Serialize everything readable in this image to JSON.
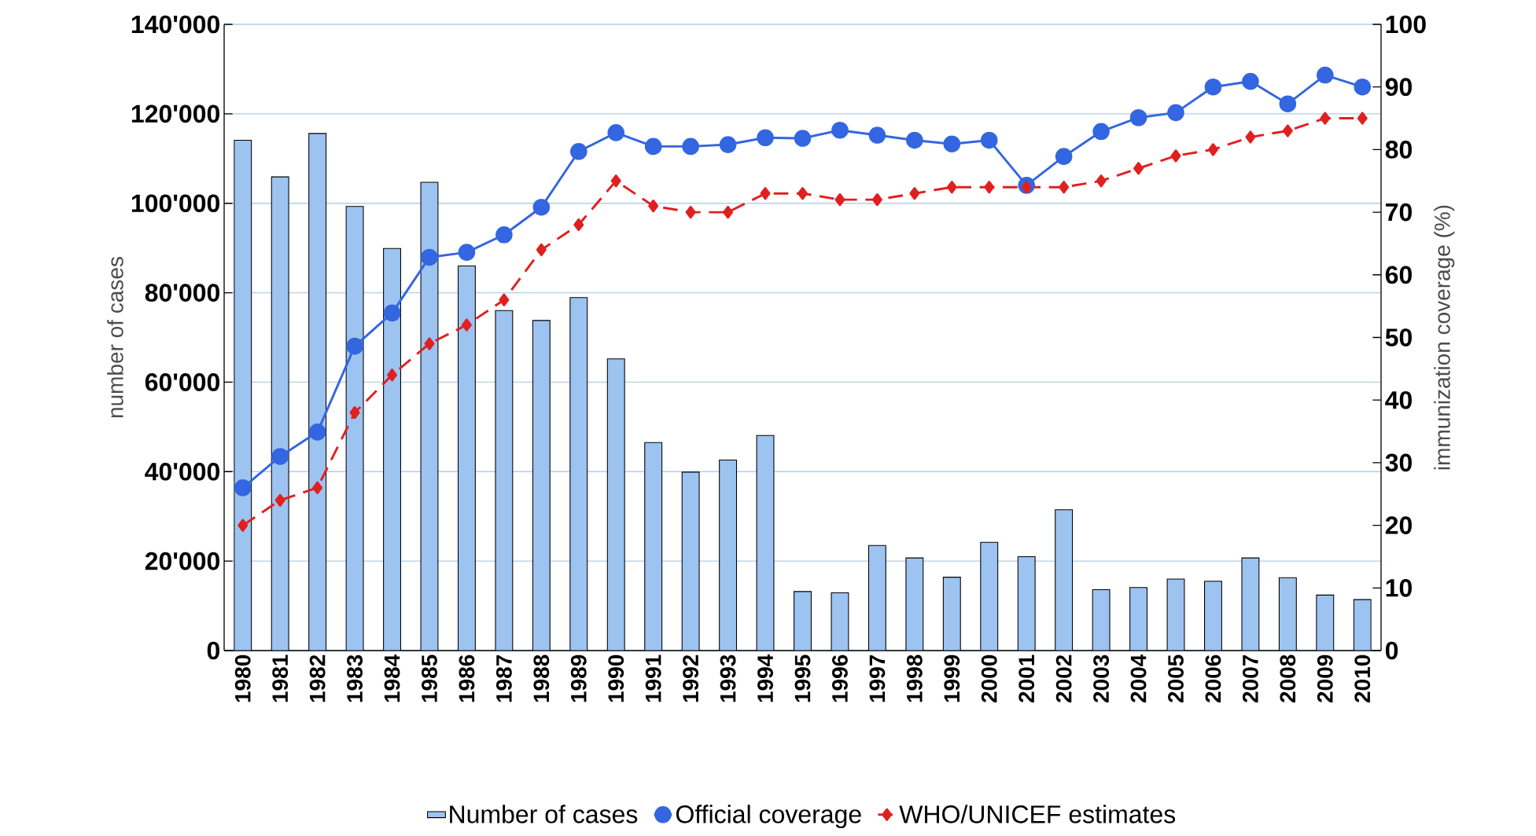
{
  "chart_data": {
    "type": "bar",
    "xlabel": null,
    "ylabel": "number of cases",
    "y2label": "immunization coverage (%)",
    "categories": [
      "1980",
      "1981",
      "1982",
      "1983",
      "1984",
      "1985",
      "1986",
      "1987",
      "1988",
      "1989",
      "1990",
      "1991",
      "1992",
      "1993",
      "1994",
      "1995",
      "1996",
      "1997",
      "1998",
      "1999",
      "2000",
      "2001",
      "2002",
      "2003",
      "2004",
      "2005",
      "2006",
      "2007",
      "2008",
      "2009",
      "2010"
    ],
    "series": [
      {
        "name": "Number of cases",
        "color": "#9dc3f0",
        "values": [
          114100,
          105900,
          115600,
          99300,
          89900,
          104700,
          86000,
          76000,
          73800,
          78900,
          65200,
          46500,
          39900,
          42600,
          48100,
          13200,
          12900,
          23500,
          20700,
          16400,
          24200,
          21000,
          31500,
          13600,
          14100,
          16000,
          15500,
          20700,
          16300,
          12400,
          11400
        ]
      },
      {
        "name": "Official coverage",
        "type": "line",
        "axis": "y2",
        "color": "#3366e0",
        "marker": "circle",
        "line_style": "solid",
        "values": [
          26.0,
          31.0,
          34.9,
          48.6,
          53.9,
          62.8,
          63.6,
          66.4,
          70.8,
          79.7,
          82.7,
          80.5,
          80.5,
          80.8,
          81.9,
          81.8,
          83.1,
          82.3,
          81.5,
          80.9,
          81.5,
          74.3,
          78.9,
          82.9,
          85.1,
          85.9,
          90.0,
          90.9,
          87.3,
          91.9,
          90.0
        ]
      },
      {
        "name": "WHO/UNICEF estimates",
        "type": "line",
        "axis": "y2",
        "color": "#e02020",
        "marker": "diamond",
        "line_style": "dashed",
        "values": [
          20,
          24,
          26,
          38,
          44,
          49,
          52,
          56,
          64,
          68,
          75,
          71,
          70,
          70,
          73,
          73,
          72,
          72,
          73,
          74,
          74,
          74,
          74,
          75,
          77,
          79,
          80,
          82,
          83,
          85,
          85
        ]
      }
    ],
    "ylim": [
      0,
      140000
    ],
    "yticks": [
      0,
      {
        "value": 20000,
        "label": "20'000"
      },
      {
        "value": 40000,
        "label": "40'000"
      },
      {
        "value": 60000,
        "label": "60'000"
      },
      {
        "value": 80000,
        "label": "80'000"
      },
      {
        "value": 100000,
        "label": "100'000"
      },
      {
        "value": 120000,
        "label": "120'000"
      },
      {
        "value": 140000,
        "label": "140'000"
      }
    ],
    "y2lim": [
      0,
      100
    ],
    "y2ticks": [
      0,
      10,
      20,
      30,
      40,
      50,
      60,
      70,
      80,
      90,
      100
    ],
    "grid": "y",
    "legend": "bottom"
  }
}
